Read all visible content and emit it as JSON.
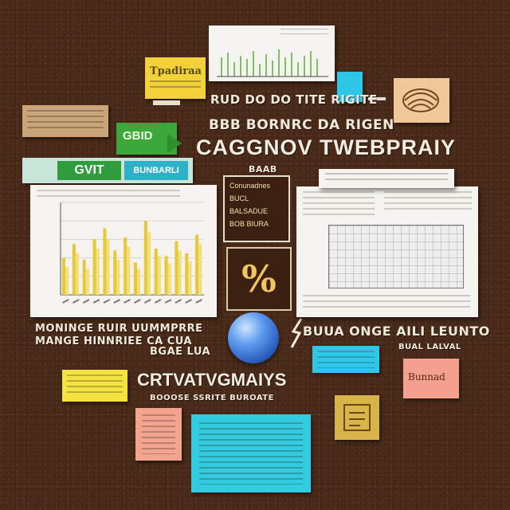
{
  "collage": {
    "top_heading": "RUD DO DO TITE RIGITE",
    "second_heading": "BBB BORNRC DA RIGEN",
    "main_title": "CAGGNOV TWEBPRAIY",
    "sub_label": "BAAB",
    "green_tag": "GBID",
    "left_banner_green": "GVIT",
    "left_banner_blue": "BUNBARLI",
    "left_caption_1": "MONINGE RUIR UUMMPRRE",
    "left_caption_2": "MANGE HINNRIEE CA CUA",
    "left_caption_3": "BGAE LUA",
    "bottom_title": "CRTVATVGMAIYS",
    "bottom_caption": "BOOOSE SSRITE BUROATE",
    "right_caption_1": "BUUA ONGE AILI LEUNTO",
    "right_caption_2": "BUAL LALVAL",
    "center_frame_1": "Conunadnes",
    "center_frame_2": "BUCL",
    "center_frame_3": "BALSADUE",
    "center_frame_4": "BOB BIURA",
    "center_glyph": "%",
    "sticky_top": "Tpadiraa",
    "sticky_pink_right": "Bunnad"
  },
  "chart_data": {
    "type": "bar",
    "categories": [
      "1",
      "2",
      "3",
      "4",
      "5",
      "6",
      "7",
      "8",
      "9",
      "10",
      "11",
      "12",
      "13",
      "14"
    ],
    "series": [
      {
        "values": [
          40,
          55,
          38,
          60,
          72,
          48,
          62,
          35,
          80,
          50,
          42,
          58,
          45,
          65
        ]
      },
      {
        "values": [
          30,
          45,
          28,
          50,
          60,
          38,
          52,
          28,
          68,
          42,
          34,
          48,
          36,
          55
        ]
      }
    ],
    "ylim": [
      0,
      100
    ],
    "grid": true,
    "colors": {
      "primary": "#e8c83a",
      "secondary": "#f2e07a"
    }
  }
}
